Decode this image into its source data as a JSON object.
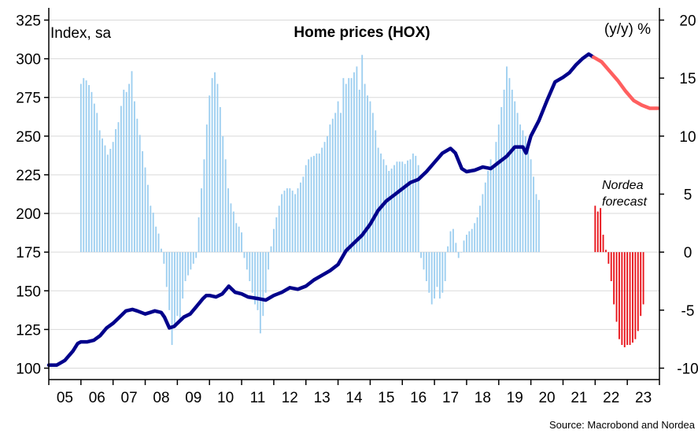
{
  "chart_data": {
    "type": "bar+line",
    "title": "Home prices (HOX)",
    "left_axis_label": "Index, sa",
    "right_axis_label": "(y/y) %",
    "source": "Source: Macrobond and Nordea",
    "annotation": [
      "Nordea",
      "forecast"
    ],
    "x_tick_labels": [
      "05",
      "06",
      "07",
      "08",
      "09",
      "10",
      "11",
      "12",
      "13",
      "14",
      "15",
      "16",
      "17",
      "18",
      "19",
      "20",
      "21",
      "22",
      "23"
    ],
    "xlim": [
      2005.0,
      2024.0
    ],
    "left_ylim": [
      100,
      325
    ],
    "left_ticks": [
      100,
      125,
      150,
      175,
      200,
      225,
      250,
      275,
      300,
      325
    ],
    "right_ylim": [
      -10,
      20
    ],
    "right_ticks": [
      -10,
      -5,
      0,
      5,
      10,
      15,
      20
    ],
    "gridlines": "horizontal",
    "colors": {
      "index_actual": "#00008b",
      "index_forecast": "#ff5f5f",
      "yoy_actual": "#9ecff0",
      "yoy_forecast": "#e8141b"
    },
    "series": [
      {
        "name": "Index, sa",
        "axis": "left",
        "kind": "line",
        "x": [
          2005.0,
          2005.25,
          2005.5,
          2005.75,
          2005.9,
          2006.0,
          2006.2,
          2006.4,
          2006.6,
          2006.8,
          2007.0,
          2007.2,
          2007.4,
          2007.6,
          2007.75,
          2008.0,
          2008.15,
          2008.3,
          2008.5,
          2008.6,
          2008.75,
          2008.9,
          2009.0,
          2009.2,
          2009.4,
          2009.6,
          2009.8,
          2009.9,
          2010.0,
          2010.2,
          2010.4,
          2010.6,
          2010.8,
          2011.0,
          2011.2,
          2011.5,
          2011.75,
          2012.0,
          2012.25,
          2012.5,
          2012.75,
          2013.0,
          2013.25,
          2013.5,
          2013.75,
          2014.0,
          2014.25,
          2014.5,
          2014.75,
          2015.0,
          2015.25,
          2015.5,
          2015.75,
          2016.0,
          2016.25,
          2016.5,
          2016.75,
          2017.0,
          2017.25,
          2017.5,
          2017.65,
          2017.85,
          2018.0,
          2018.25,
          2018.5,
          2018.75,
          2019.0,
          2019.25,
          2019.5,
          2019.75,
          2019.85,
          2020.0,
          2020.25,
          2020.5,
          2020.75,
          2021.0,
          2021.2,
          2021.4,
          2021.6,
          2021.8,
          2021.95
        ],
        "values": [
          102,
          102,
          105,
          111,
          116,
          117,
          117,
          118,
          121,
          126,
          129,
          133,
          137,
          138,
          137,
          135,
          136,
          137,
          136,
          133,
          126,
          127,
          129,
          133,
          135,
          140,
          145,
          147,
          147,
          146,
          148,
          153,
          149,
          148,
          146,
          145,
          144,
          147,
          149,
          152,
          151,
          153,
          157,
          160,
          163,
          167,
          176,
          181,
          186,
          193,
          202,
          208,
          212,
          216,
          220,
          222,
          227,
          233,
          239,
          242,
          239,
          229,
          227,
          228,
          230,
          229,
          233,
          237,
          243,
          243,
          239,
          250,
          260,
          273,
          285,
          288,
          291,
          296,
          300,
          303,
          301
        ]
      },
      {
        "name": "Nordea forecast",
        "axis": "left",
        "kind": "line",
        "x": [
          2021.95,
          2022.2,
          2022.45,
          2022.7,
          2022.95,
          2023.2,
          2023.45,
          2023.7,
          2023.95
        ],
        "values": [
          301,
          298,
          292,
          286,
          279,
          273,
          270,
          268,
          268
        ]
      },
      {
        "name": "(y/y) %",
        "axis": "right",
        "kind": "bars",
        "start_x": 2006.0,
        "step_x": 0.0833333,
        "values": [
          14.5,
          15.0,
          14.8,
          14.4,
          13.8,
          12.8,
          12.0,
          10.5,
          9.8,
          9.2,
          8.4,
          8.9,
          9.5,
          10.6,
          11.2,
          12.6,
          14.0,
          13.8,
          14.5,
          15.6,
          13.0,
          11.5,
          10.1,
          8.7,
          7.3,
          5.8,
          4.0,
          3.4,
          2.2,
          1.6,
          0.3,
          -1.0,
          -3.0,
          -5.0,
          -8.0,
          -6.5,
          -5.5,
          -6.0,
          -4.0,
          -2.5,
          -2.0,
          -1.5,
          -1.0,
          -0.5,
          3.0,
          5.5,
          8.0,
          11.0,
          13.5,
          15.0,
          15.5,
          14.5,
          12.5,
          10.0,
          8.0,
          5.5,
          4.2,
          3.5,
          2.5,
          2.2,
          1.7,
          -0.5,
          -1.5,
          -2.5,
          -3.5,
          -4.5,
          -5.0,
          -7.0,
          -5.5,
          -3.5,
          -1.5,
          0.5,
          2.0,
          3.0,
          4.0,
          5.0,
          5.3,
          5.5,
          5.5,
          5.3,
          5.0,
          5.5,
          6.0,
          6.5,
          7.5,
          8.0,
          8.2,
          8.3,
          8.5,
          8.5,
          9.0,
          9.5,
          10.0,
          11.0,
          11.5,
          12.0,
          13.0,
          12.0,
          15.0,
          14.5,
          15.0,
          15.0,
          15.5,
          16.0,
          14.0,
          17.0,
          14.5,
          13.5,
          13.0,
          12.0,
          10.5,
          9.0,
          8.5,
          8.0,
          7.5,
          7.0,
          7.2,
          7.5,
          7.8,
          7.8,
          7.8,
          7.6,
          7.9,
          8.0,
          8.5,
          8.3,
          7.5,
          -0.5,
          -1.5,
          -2.5,
          -3.5,
          -4.5,
          -4.0,
          -3.0,
          -4.0,
          -3.5,
          -2.5,
          0.5,
          1.8,
          2.0,
          0.8,
          -0.5,
          0.0,
          1.0,
          1.5,
          1.8,
          2.0,
          2.5,
          3.0,
          4.0,
          5.0,
          6.0,
          7.0,
          8.0,
          7.5,
          9.5,
          11.0,
          12.5,
          14.0,
          16.0,
          15.0,
          14.0,
          13.0,
          12.0,
          11.0,
          10.5,
          10.0,
          9.5,
          8.0,
          6.5,
          5.0,
          4.5
        ]
      },
      {
        "name": "(y/y) % forecast",
        "axis": "right",
        "kind": "bars",
        "start_x": 2022.0,
        "step_x": 0.0833333,
        "values": [
          4.0,
          3.5,
          3.8,
          1.5,
          0.2,
          -1.0,
          -2.5,
          -4.5,
          -6.0,
          -7.5,
          -8.0,
          -8.2,
          -8.0,
          -8.0,
          -7.8,
          -7.5,
          -6.8,
          -5.5,
          -4.5
        ]
      }
    ]
  }
}
